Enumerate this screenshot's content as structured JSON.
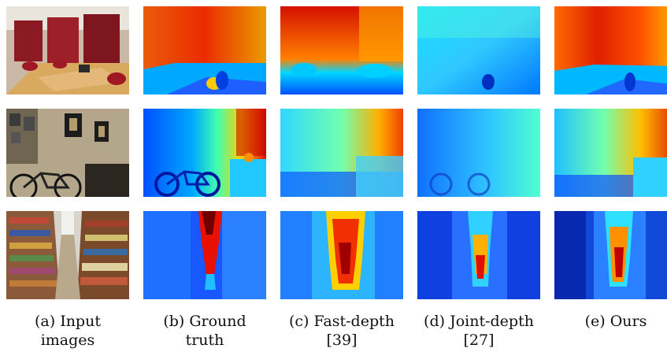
{
  "figure": {
    "columns": [
      {
        "key": "input",
        "caption_line1": "(a) Input",
        "caption_line2": "images"
      },
      {
        "key": "gt",
        "caption_line1": "(b) Ground",
        "caption_line2": "truth"
      },
      {
        "key": "fast",
        "caption_line1": "(c) Fast-depth",
        "caption_line2": "[39]"
      },
      {
        "key": "joint",
        "caption_line1": "(d) Joint-depth",
        "caption_line2": "[27]"
      },
      {
        "key": "ours",
        "caption_line1": "(e) Ours",
        "caption_line2": ""
      }
    ],
    "rows": [
      {
        "scene": "office-conference-room"
      },
      {
        "scene": "room-with-bicycle"
      },
      {
        "scene": "library-bookshelves"
      }
    ]
  }
}
